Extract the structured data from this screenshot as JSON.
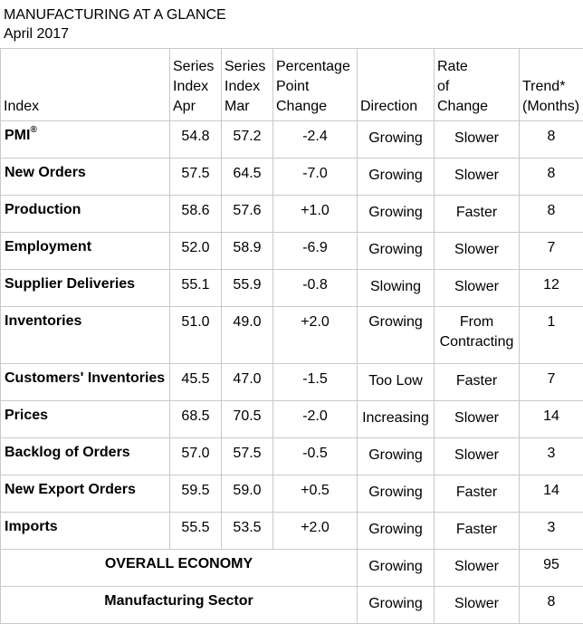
{
  "title": "MANUFACTURING AT A GLANCE",
  "subtitle": "April 2017",
  "headers": {
    "index": "Index",
    "apr": [
      "Series",
      "Index",
      "Apr"
    ],
    "mar": [
      "Series",
      "Index",
      "Mar"
    ],
    "change": [
      "Percentage",
      "Point",
      "Change"
    ],
    "direction": "Direction",
    "rate": [
      "Rate",
      "of",
      "Change"
    ],
    "trend": [
      "Trend*",
      "(Months)"
    ]
  },
  "rows": [
    {
      "index": "PMI",
      "sup": "®",
      "apr": "54.8",
      "mar": "57.2",
      "change": "-2.4",
      "direction": "Growing",
      "rate": "Slower",
      "trend": "8"
    },
    {
      "index": "New Orders",
      "apr": "57.5",
      "mar": "64.5",
      "change": "-7.0",
      "direction": "Growing",
      "rate": "Slower",
      "trend": "8"
    },
    {
      "index": "Production",
      "apr": "58.6",
      "mar": "57.6",
      "change": "+1.0",
      "direction": "Growing",
      "rate": "Faster",
      "trend": "8"
    },
    {
      "index": "Employment",
      "apr": "52.0",
      "mar": "58.9",
      "change": "-6.9",
      "direction": "Growing",
      "rate": "Slower",
      "trend": "7"
    },
    {
      "index": "Supplier Deliveries",
      "apr": "55.1",
      "mar": "55.9",
      "change": "-0.8",
      "direction": "Slowing",
      "rate": "Slower",
      "trend": "12"
    },
    {
      "index": "Inventories",
      "apr": "51.0",
      "mar": "49.0",
      "change": "+2.0",
      "direction": "Growing",
      "rate": "From Contracting",
      "rate_lines": [
        "From",
        "Contracting"
      ],
      "trend": "1"
    },
    {
      "index": "Customers' Inventories",
      "apr": "45.5",
      "mar": "47.0",
      "change": "-1.5",
      "direction": "Too Low",
      "rate": "Faster",
      "trend": "7"
    },
    {
      "index": "Prices",
      "apr": "68.5",
      "mar": "70.5",
      "change": "-2.0",
      "direction": "Increasing",
      "rate": "Slower",
      "trend": "14"
    },
    {
      "index": "Backlog of Orders",
      "apr": "57.0",
      "mar": "57.5",
      "change": "-0.5",
      "direction": "Growing",
      "rate": "Slower",
      "trend": "3"
    },
    {
      "index": "New Export Orders",
      "apr": "59.5",
      "mar": "59.0",
      "change": "+0.5",
      "direction": "Growing",
      "rate": "Faster",
      "trend": "14"
    },
    {
      "index": "Imports",
      "apr": "55.5",
      "mar": "53.5",
      "change": "+2.0",
      "direction": "Growing",
      "rate": "Faster",
      "trend": "3"
    }
  ],
  "summary": [
    {
      "label": "OVERALL ECONOMY",
      "direction": "Growing",
      "rate": "Slower",
      "trend": "95"
    },
    {
      "label": "Manufacturing Sector",
      "direction": "Growing",
      "rate": "Slower",
      "trend": "8"
    }
  ]
}
